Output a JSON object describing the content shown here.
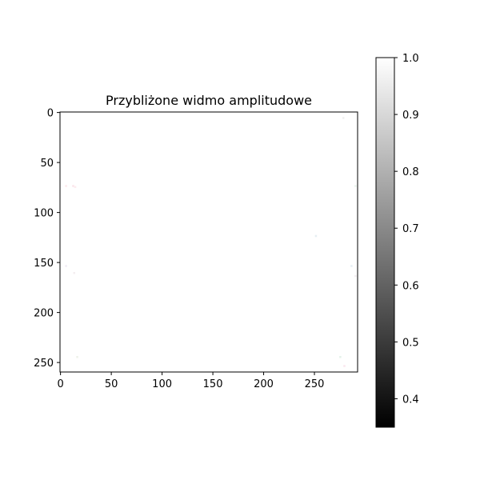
{
  "chart_data": {
    "type": "heatmap",
    "title": "Przybliżone widmo amplitudowe",
    "xlabel": "",
    "ylabel": "",
    "xlim": [
      -0.5,
      292.5
    ],
    "ylim": [
      259.5,
      -0.5
    ],
    "x_ticks": [
      0,
      50,
      100,
      150,
      200,
      250
    ],
    "x_tick_labels": [
      "0",
      "50",
      "100",
      "150",
      "200",
      "250"
    ],
    "y_ticks": [
      0,
      50,
      100,
      150,
      200,
      250
    ],
    "y_tick_labels": [
      "0",
      "50",
      "100",
      "150",
      "200",
      "250"
    ],
    "grid": false,
    "colormap": "gray",
    "background_value": 1.0,
    "colorbar": {
      "range": [
        0.35,
        1.0
      ],
      "ticks": [
        0.4,
        0.5,
        0.6,
        0.7,
        0.8,
        0.9,
        1.0
      ],
      "tick_labels": [
        "0.4",
        "0.5",
        "0.6",
        "0.7",
        "0.8",
        "0.9",
        "1.0"
      ],
      "placement": "right"
    },
    "specks": [
      {
        "x": 5,
        "y": 73,
        "color": "#fce8ec"
      },
      {
        "x": 12,
        "y": 73,
        "color": "#fbe4ea"
      },
      {
        "x": 14,
        "y": 74,
        "color": "#fdecef"
      },
      {
        "x": 290,
        "y": 73,
        "color": "#e8f4ec"
      },
      {
        "x": 5,
        "y": 153,
        "color": "#f0ecf4"
      },
      {
        "x": 13,
        "y": 160,
        "color": "#f4eef0"
      },
      {
        "x": 286,
        "y": 153,
        "color": "#e6eef4"
      },
      {
        "x": 290,
        "y": 163,
        "color": "#f2ecf0"
      },
      {
        "x": 251,
        "y": 123,
        "color": "#e6eef2"
      },
      {
        "x": 16,
        "y": 244,
        "color": "#eef2ea"
      },
      {
        "x": 275,
        "y": 244,
        "color": "#e4f2ea"
      },
      {
        "x": 279,
        "y": 253,
        "color": "#fbe6ee"
      },
      {
        "x": 278,
        "y": 5,
        "color": "#f1f1f1"
      }
    ]
  }
}
